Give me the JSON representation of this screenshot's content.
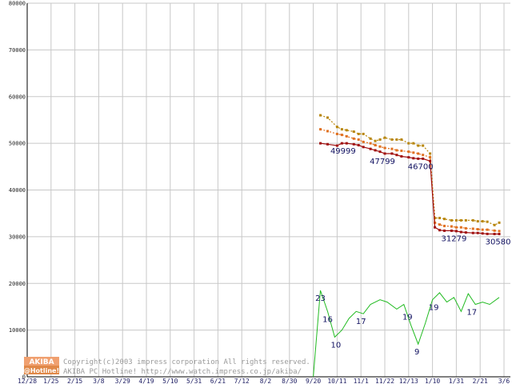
{
  "chart_data": {
    "type": "line",
    "title": "",
    "xlabel": "",
    "ylabel": "",
    "ylim": [
      0,
      80000
    ],
    "grid": true,
    "y_ticks": [
      "0",
      "10000",
      "20000",
      "30000",
      "40000",
      "50000",
      "60000",
      "70000",
      "80000"
    ],
    "x_ticks": [
      "12/28",
      "1/25",
      "2/15",
      "3/8",
      "3/29",
      "4/19",
      "5/10",
      "5/31",
      "6/21",
      "7/12",
      "8/2",
      "8/30",
      "9/20",
      "10/11",
      "11/1",
      "11/22",
      "12/13",
      "1/10",
      "1/31",
      "2/21",
      "3/6"
    ],
    "x_extent": [
      0,
      20
    ],
    "series": [
      {
        "color": "#b8860b",
        "style": "dotted",
        "x": [
          12.3,
          12.6,
          13.0,
          13.2,
          13.4,
          13.7,
          13.9,
          14.1,
          14.4,
          14.6,
          14.8,
          15.0,
          15.3,
          15.5,
          15.7,
          16.0,
          16.2,
          16.4,
          16.6,
          16.9,
          17.1,
          17.3,
          17.5,
          17.8,
          18.0,
          18.2,
          18.4,
          18.7,
          18.9,
          19.1,
          19.3,
          19.6,
          19.8
        ],
        "values": [
          56000,
          55500,
          53500,
          53000,
          52800,
          52500,
          52000,
          52000,
          51000,
          50500,
          50800,
          51200,
          50800,
          50800,
          50800,
          50000,
          50000,
          49500,
          49500,
          47800,
          34000,
          34000,
          33800,
          33500,
          33500,
          33500,
          33500,
          33500,
          33300,
          33300,
          33200,
          32500,
          33000
        ]
      },
      {
        "color": "#e07020",
        "style": "dotted",
        "x": [
          12.3,
          12.6,
          13.0,
          13.2,
          13.4,
          13.7,
          13.9,
          14.1,
          14.4,
          14.6,
          14.8,
          15.0,
          15.3,
          15.5,
          15.7,
          16.0,
          16.2,
          16.4,
          16.6,
          16.9,
          17.1,
          17.3,
          17.5,
          17.8,
          18.0,
          18.2,
          18.4,
          18.7,
          18.9,
          19.1,
          19.3,
          19.6,
          19.8
        ],
        "values": [
          53000,
          52600,
          52000,
          51800,
          51500,
          51000,
          50800,
          50300,
          50000,
          49600,
          49300,
          49000,
          48800,
          48500,
          48400,
          48200,
          48000,
          47800,
          47500,
          47000,
          33000,
          32600,
          32300,
          32200,
          32000,
          32000,
          31800,
          31700,
          31600,
          31500,
          31500,
          31300,
          31200
        ]
      },
      {
        "color": "#a01010",
        "style": "solid-markers",
        "x": [
          12.3,
          12.6,
          13.0,
          13.2,
          13.4,
          13.7,
          13.9,
          14.1,
          14.4,
          14.6,
          14.8,
          15.0,
          15.3,
          15.5,
          15.7,
          16.0,
          16.2,
          16.4,
          16.6,
          16.9,
          17.1,
          17.3,
          17.5,
          17.8,
          18.0,
          18.2,
          18.4,
          18.7,
          18.9,
          19.1,
          19.3,
          19.6,
          19.8
        ],
        "values": [
          50000,
          49800,
          49500,
          49999,
          49999,
          49800,
          49600,
          49200,
          48800,
          48500,
          48200,
          47799,
          47799,
          47500,
          47200,
          47000,
          46800,
          46700,
          46700,
          46200,
          32000,
          31400,
          31279,
          31279,
          31200,
          31000,
          30900,
          30800,
          30800,
          30700,
          30600,
          30580,
          30580
        ]
      },
      {
        "color": "#22bb22",
        "style": "solid",
        "x": [
          12.0,
          12.3,
          12.6,
          12.9,
          13.2,
          13.5,
          13.8,
          14.1,
          14.4,
          14.8,
          15.1,
          15.5,
          15.8,
          16.1,
          16.4,
          16.7,
          17.0,
          17.3,
          17.6,
          17.9,
          18.2,
          18.5,
          18.8,
          19.1,
          19.4,
          19.8
        ],
        "values": [
          0,
          18500,
          14000,
          8500,
          10000,
          12500,
          14000,
          13500,
          15500,
          16500,
          16000,
          14500,
          15500,
          11000,
          7000,
          11500,
          16500,
          18000,
          16000,
          17000,
          14000,
          17800,
          15500,
          16000,
          15500,
          17000
        ]
      }
    ],
    "annotations": [
      {
        "text": "49999",
        "x": 13.25,
        "y": 49999,
        "series": 2
      },
      {
        "text": "47799",
        "x": 14.9,
        "y": 47799,
        "series": 2
      },
      {
        "text": "46700",
        "x": 16.5,
        "y": 46700,
        "series": 2
      },
      {
        "text": "31279",
        "x": 17.9,
        "y": 31279,
        "series": 2
      },
      {
        "text": "30580",
        "x": 19.75,
        "y": 30580,
        "series": 2
      },
      {
        "text": "23",
        "x": 12.3,
        "y": 18500,
        "series": 3
      },
      {
        "text": "16",
        "x": 12.6,
        "y": 14000,
        "series": 3
      },
      {
        "text": "10",
        "x": 12.95,
        "y": 8500,
        "series": 3
      },
      {
        "text": "17",
        "x": 14.0,
        "y": 13500,
        "series": 3
      },
      {
        "text": "19",
        "x": 15.95,
        "y": 14500,
        "series": 3
      },
      {
        "text": "9",
        "x": 16.35,
        "y": 7000,
        "series": 3
      },
      {
        "text": "19",
        "x": 17.05,
        "y": 16500,
        "series": 3
      },
      {
        "text": "17",
        "x": 18.65,
        "y": 15500,
        "series": 3
      }
    ]
  },
  "footer": {
    "logo_top": "AKIBA",
    "logo_bottom": "@Hotline!",
    "copyright_line1": "Copyright(c)2003 impress corporation All rights reserved.",
    "copyright_line2": "AKIBA PC Hotline!  http://www.watch.impress.co.jp/akiba/"
  },
  "colors": {
    "grid": "#c8c8c8",
    "axis": "#000000",
    "logo_bg": "#f0a070",
    "logo_bg_dark": "#e08848"
  }
}
